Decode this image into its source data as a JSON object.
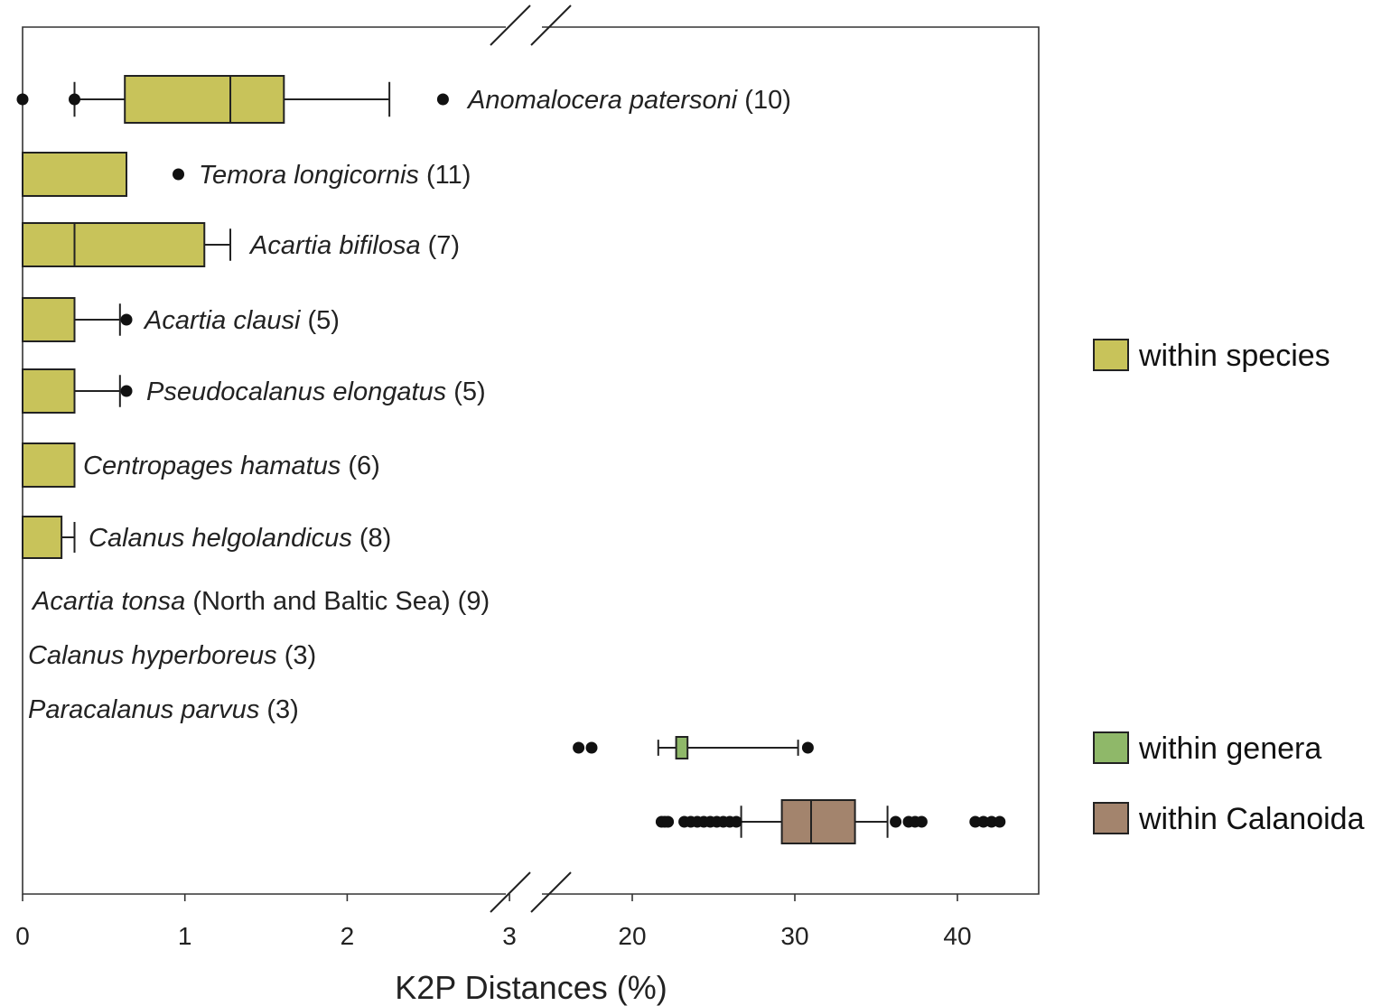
{
  "chart_data": {
    "type": "box",
    "orientation": "horizontal",
    "xlabel": "K2P Distances (%)",
    "x_axis_break": {
      "low_range": [
        0,
        3.2
      ],
      "high_range": [
        17.2,
        44.2
      ]
    },
    "x_ticks": [
      "0",
      "1",
      "2",
      "3",
      "20",
      "30",
      "40"
    ],
    "grid": false,
    "legend_position": "right",
    "legend": [
      {
        "label": "within species",
        "color": "#c8c35a"
      },
      {
        "label": "within genera",
        "color": "#8fb869"
      },
      {
        "label": "within Calanoida",
        "color": "#a3846d"
      }
    ],
    "boxes": [
      {
        "group": "within species",
        "species": "Anomalocera patersoni",
        "count": "(10)",
        "whisker_low": 0.32,
        "q1": 0.63,
        "median": 1.28,
        "q3": 1.61,
        "whisker_high": 2.26,
        "outliers": [
          0.0,
          0.32,
          2.59
        ],
        "box": true
      },
      {
        "group": "within species",
        "species": "Temora longicornis",
        "count": "(11)",
        "whisker_low": 0.0,
        "q1": 0.0,
        "median": 0.0,
        "q3": 0.64,
        "whisker_high": 0.64,
        "outliers": [
          0.96
        ],
        "box": true
      },
      {
        "group": "within species",
        "species": "Acartia bifilosa",
        "count": "(7)",
        "whisker_low": 0.0,
        "q1": 0.0,
        "median": 0.32,
        "q3": 1.12,
        "whisker_high": 1.28,
        "outliers": [],
        "box": true
      },
      {
        "group": "within species",
        "species": "Acartia clausi",
        "count": "(5)",
        "whisker_low": 0.0,
        "q1": 0.0,
        "median": 0.0,
        "q3": 0.32,
        "whisker_high": 0.6,
        "outliers": [
          0.64
        ],
        "box": true
      },
      {
        "group": "within species",
        "species": "Pseudocalanus elongatus",
        "count": "(5)",
        "whisker_low": 0.0,
        "q1": 0.0,
        "median": 0.0,
        "q3": 0.32,
        "whisker_high": 0.6,
        "outliers": [
          0.64
        ],
        "box": true
      },
      {
        "group": "within species",
        "species": "Centropages hamatus",
        "count": "(6)",
        "whisker_low": 0.0,
        "q1": 0.0,
        "median": 0.0,
        "q3": 0.32,
        "whisker_high": 0.32,
        "outliers": [],
        "box": true
      },
      {
        "group": "within species",
        "species": "Calanus helgolandicus",
        "count": "(8)",
        "whisker_low": 0.0,
        "q1": 0.0,
        "median": 0.0,
        "q3": 0.24,
        "whisker_high": 0.32,
        "outliers": [],
        "box": true
      },
      {
        "group": "within species",
        "species": "Acartia tonsa",
        "qualifier": "(North and Baltic Sea)",
        "count": "(9)",
        "box": false
      },
      {
        "group": "within species",
        "species": "Calanus hyperboreus",
        "count": "(3)",
        "box": false
      },
      {
        "group": "within species",
        "species": "Paracalanus parvus",
        "count": "(3)",
        "box": false
      },
      {
        "group": "within genera",
        "whisker_low": 21.6,
        "q1": 22.7,
        "median": 22.7,
        "q3": 23.4,
        "whisker_high": 30.2,
        "outliers": [
          16.7,
          17.5,
          30.8
        ],
        "box": true
      },
      {
        "group": "within Calanoida",
        "whisker_low": 26.7,
        "q1": 29.2,
        "median": 31.0,
        "q3": 33.7,
        "whisker_high": 35.7,
        "outliers": [
          21.8,
          22.0,
          22.2,
          23.2,
          23.6,
          24.0,
          24.4,
          24.8,
          25.2,
          25.6,
          26.0,
          26.4,
          36.2,
          37.0,
          37.4,
          37.8,
          41.1,
          41.6,
          42.1,
          42.6
        ],
        "box": true
      }
    ]
  }
}
